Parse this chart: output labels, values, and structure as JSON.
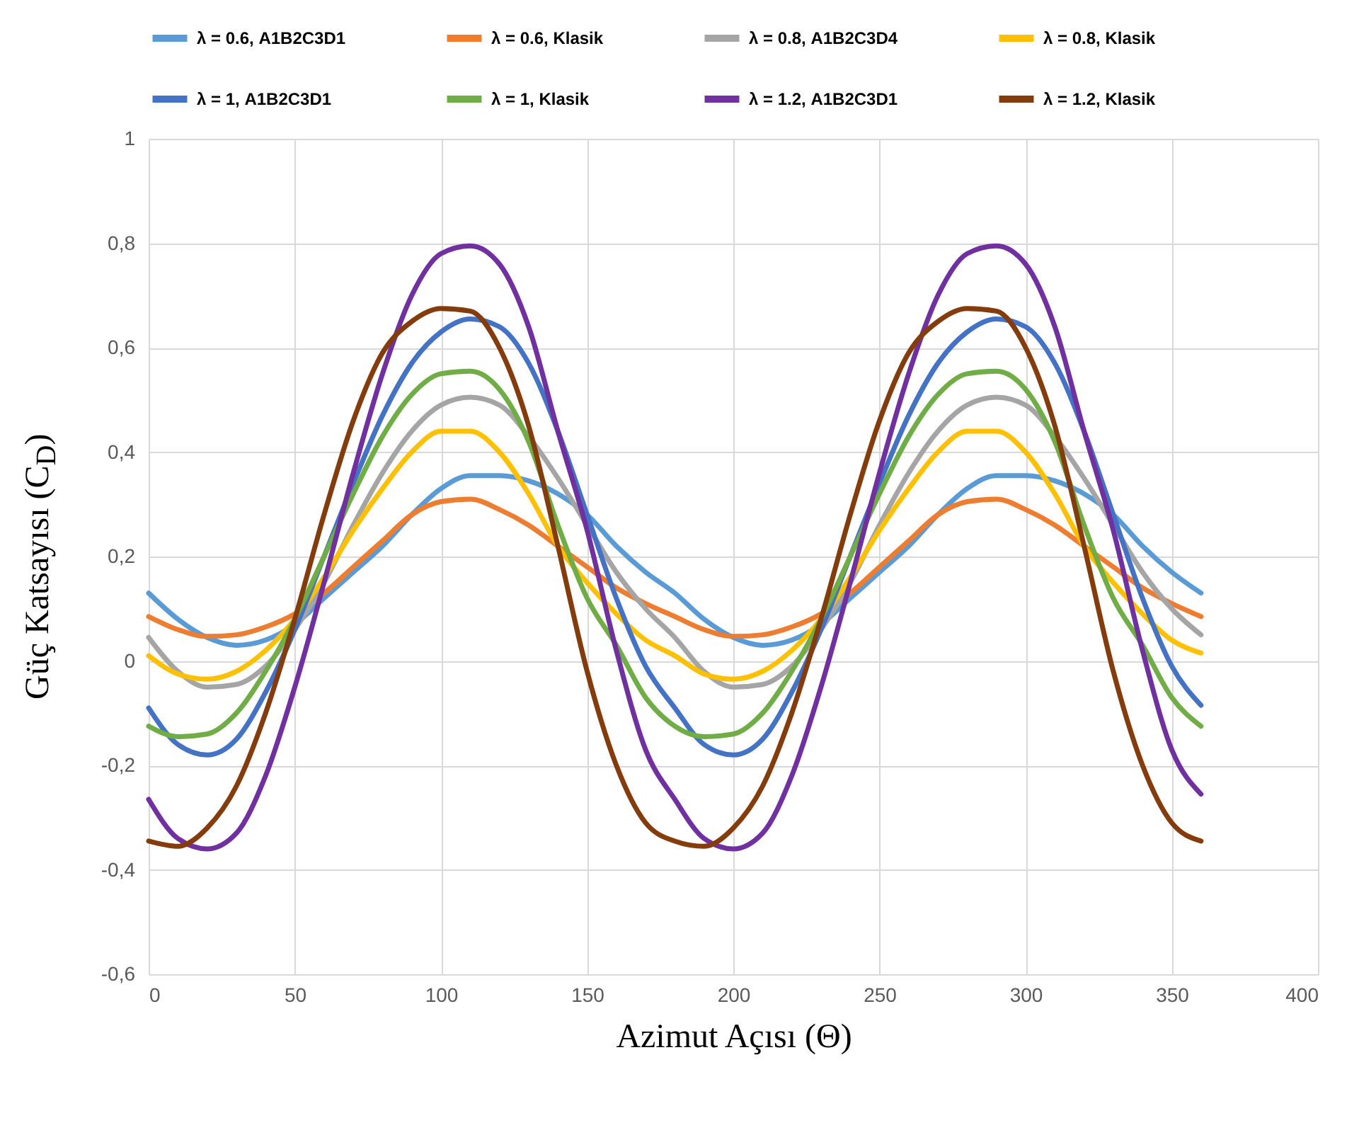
{
  "chart_data": {
    "type": "line",
    "xlabel": "Azimut Açısı (Θ)",
    "ylabel": "Güç Katsayısı (C$_{D}$)",
    "x": [
      0,
      10,
      20,
      30,
      40,
      50,
      60,
      70,
      80,
      90,
      100,
      110,
      120,
      130,
      140,
      150,
      160,
      170,
      180,
      190,
      200,
      210,
      220,
      230,
      240,
      250,
      260,
      270,
      280,
      290,
      300,
      310,
      320,
      330,
      340,
      350,
      360
    ],
    "series": [
      {
        "name": "λ = 0.6, A1B2C3D1",
        "color": "#5b9bd5",
        "values": [
          0.13,
          0.08,
          0.045,
          0.03,
          0.04,
          0.07,
          0.12,
          0.17,
          0.22,
          0.28,
          0.33,
          0.355,
          0.355,
          0.345,
          0.32,
          0.28,
          0.22,
          0.17,
          0.13,
          0.08,
          0.045,
          0.03,
          0.04,
          0.07,
          0.12,
          0.17,
          0.22,
          0.28,
          0.33,
          0.355,
          0.355,
          0.345,
          0.32,
          0.28,
          0.22,
          0.17,
          0.13
        ]
      },
      {
        "name": "λ = 0.6, Klasik",
        "color": "#ed7d31",
        "values": [
          0.085,
          0.06,
          0.047,
          0.05,
          0.065,
          0.09,
          0.13,
          0.18,
          0.23,
          0.28,
          0.305,
          0.31,
          0.29,
          0.26,
          0.22,
          0.18,
          0.14,
          0.11,
          0.085,
          0.06,
          0.047,
          0.05,
          0.065,
          0.09,
          0.13,
          0.18,
          0.23,
          0.28,
          0.305,
          0.31,
          0.29,
          0.26,
          0.22,
          0.18,
          0.14,
          0.11,
          0.085
        ]
      },
      {
        "name": "λ = 0.8, A1B2C3D4",
        "color": "#a5a5a5",
        "values": [
          0.045,
          -0.02,
          -0.05,
          -0.045,
          -0.01,
          0.06,
          0.15,
          0.26,
          0.36,
          0.44,
          0.49,
          0.505,
          0.49,
          0.43,
          0.35,
          0.26,
          0.17,
          0.1,
          0.045,
          -0.02,
          -0.05,
          -0.045,
          -0.01,
          0.06,
          0.15,
          0.26,
          0.36,
          0.44,
          0.49,
          0.505,
          0.49,
          0.43,
          0.35,
          0.26,
          0.17,
          0.1,
          0.05
        ]
      },
      {
        "name": "λ = 0.8, Klasik",
        "color": "#ffc000",
        "values": [
          0.01,
          -0.025,
          -0.035,
          -0.02,
          0.02,
          0.08,
          0.16,
          0.25,
          0.33,
          0.4,
          0.44,
          0.44,
          0.4,
          0.32,
          0.22,
          0.15,
          0.09,
          0.04,
          0.01,
          -0.025,
          -0.035,
          -0.02,
          0.02,
          0.08,
          0.16,
          0.25,
          0.33,
          0.4,
          0.44,
          0.44,
          0.4,
          0.32,
          0.22,
          0.15,
          0.09,
          0.04,
          0.015
        ]
      },
      {
        "name": "λ = 1, A1B2C3D1",
        "color": "#4472c4",
        "values": [
          -0.09,
          -0.16,
          -0.18,
          -0.15,
          -0.06,
          0.06,
          0.2,
          0.34,
          0.47,
          0.57,
          0.63,
          0.655,
          0.64,
          0.57,
          0.44,
          0.28,
          0.12,
          -0.01,
          -0.09,
          -0.16,
          -0.18,
          -0.15,
          -0.06,
          0.06,
          0.2,
          0.34,
          0.47,
          0.57,
          0.63,
          0.655,
          0.64,
          0.57,
          0.44,
          0.28,
          0.12,
          -0.01,
          -0.085
        ]
      },
      {
        "name": "λ = 1, Klasik",
        "color": "#70ad47",
        "values": [
          -0.125,
          -0.145,
          -0.14,
          -0.1,
          -0.02,
          0.08,
          0.2,
          0.32,
          0.43,
          0.51,
          0.55,
          0.555,
          0.52,
          0.42,
          0.26,
          0.12,
          0.03,
          -0.07,
          -0.125,
          -0.145,
          -0.14,
          -0.1,
          -0.02,
          0.08,
          0.2,
          0.32,
          0.43,
          0.51,
          0.55,
          0.555,
          0.52,
          0.42,
          0.26,
          0.12,
          0.03,
          -0.07,
          -0.125
        ]
      },
      {
        "name": "λ = 1.2, A1B2C3D1",
        "color": "#7030a0",
        "values": [
          -0.265,
          -0.34,
          -0.36,
          -0.33,
          -0.22,
          -0.05,
          0.15,
          0.36,
          0.55,
          0.7,
          0.78,
          0.795,
          0.76,
          0.64,
          0.44,
          0.25,
          0.02,
          -0.17,
          -0.265,
          -0.34,
          -0.36,
          -0.33,
          -0.22,
          -0.05,
          0.15,
          0.36,
          0.55,
          0.7,
          0.78,
          0.795,
          0.76,
          0.64,
          0.44,
          0.25,
          0.02,
          -0.17,
          -0.255
        ]
      },
      {
        "name": "λ = 1.2, Klasik",
        "color": "#843c0c",
        "values": [
          -0.345,
          -0.355,
          -0.32,
          -0.24,
          -0.1,
          0.08,
          0.28,
          0.46,
          0.59,
          0.65,
          0.675,
          0.67,
          0.6,
          0.45,
          0.22,
          -0.02,
          -0.2,
          -0.31,
          -0.345,
          -0.355,
          -0.32,
          -0.24,
          -0.1,
          0.08,
          0.28,
          0.46,
          0.59,
          0.65,
          0.675,
          0.67,
          0.6,
          0.45,
          0.22,
          -0.02,
          -0.2,
          -0.31,
          -0.345
        ]
      }
    ],
    "xlim": [
      0,
      400
    ],
    "xticks": [
      0,
      50,
      100,
      150,
      200,
      250,
      300,
      350,
      400
    ],
    "ylim": [
      -0.6,
      1
    ],
    "yticks": [
      {
        "value": -0.6,
        "label": "-0,6"
      },
      {
        "value": -0.4,
        "label": "-0,4"
      },
      {
        "value": -0.2,
        "label": "-0,2"
      },
      0,
      {
        "value": 0.2,
        "label": "0,2"
      },
      {
        "value": 0.4,
        "label": "0,4"
      },
      {
        "value": 0.6,
        "label": "0,6"
      },
      {
        "value": 0.8,
        "label": "0,8"
      },
      1
    ],
    "grid": true,
    "legend": "top",
    "marker": "none",
    "line_style": "solid"
  }
}
